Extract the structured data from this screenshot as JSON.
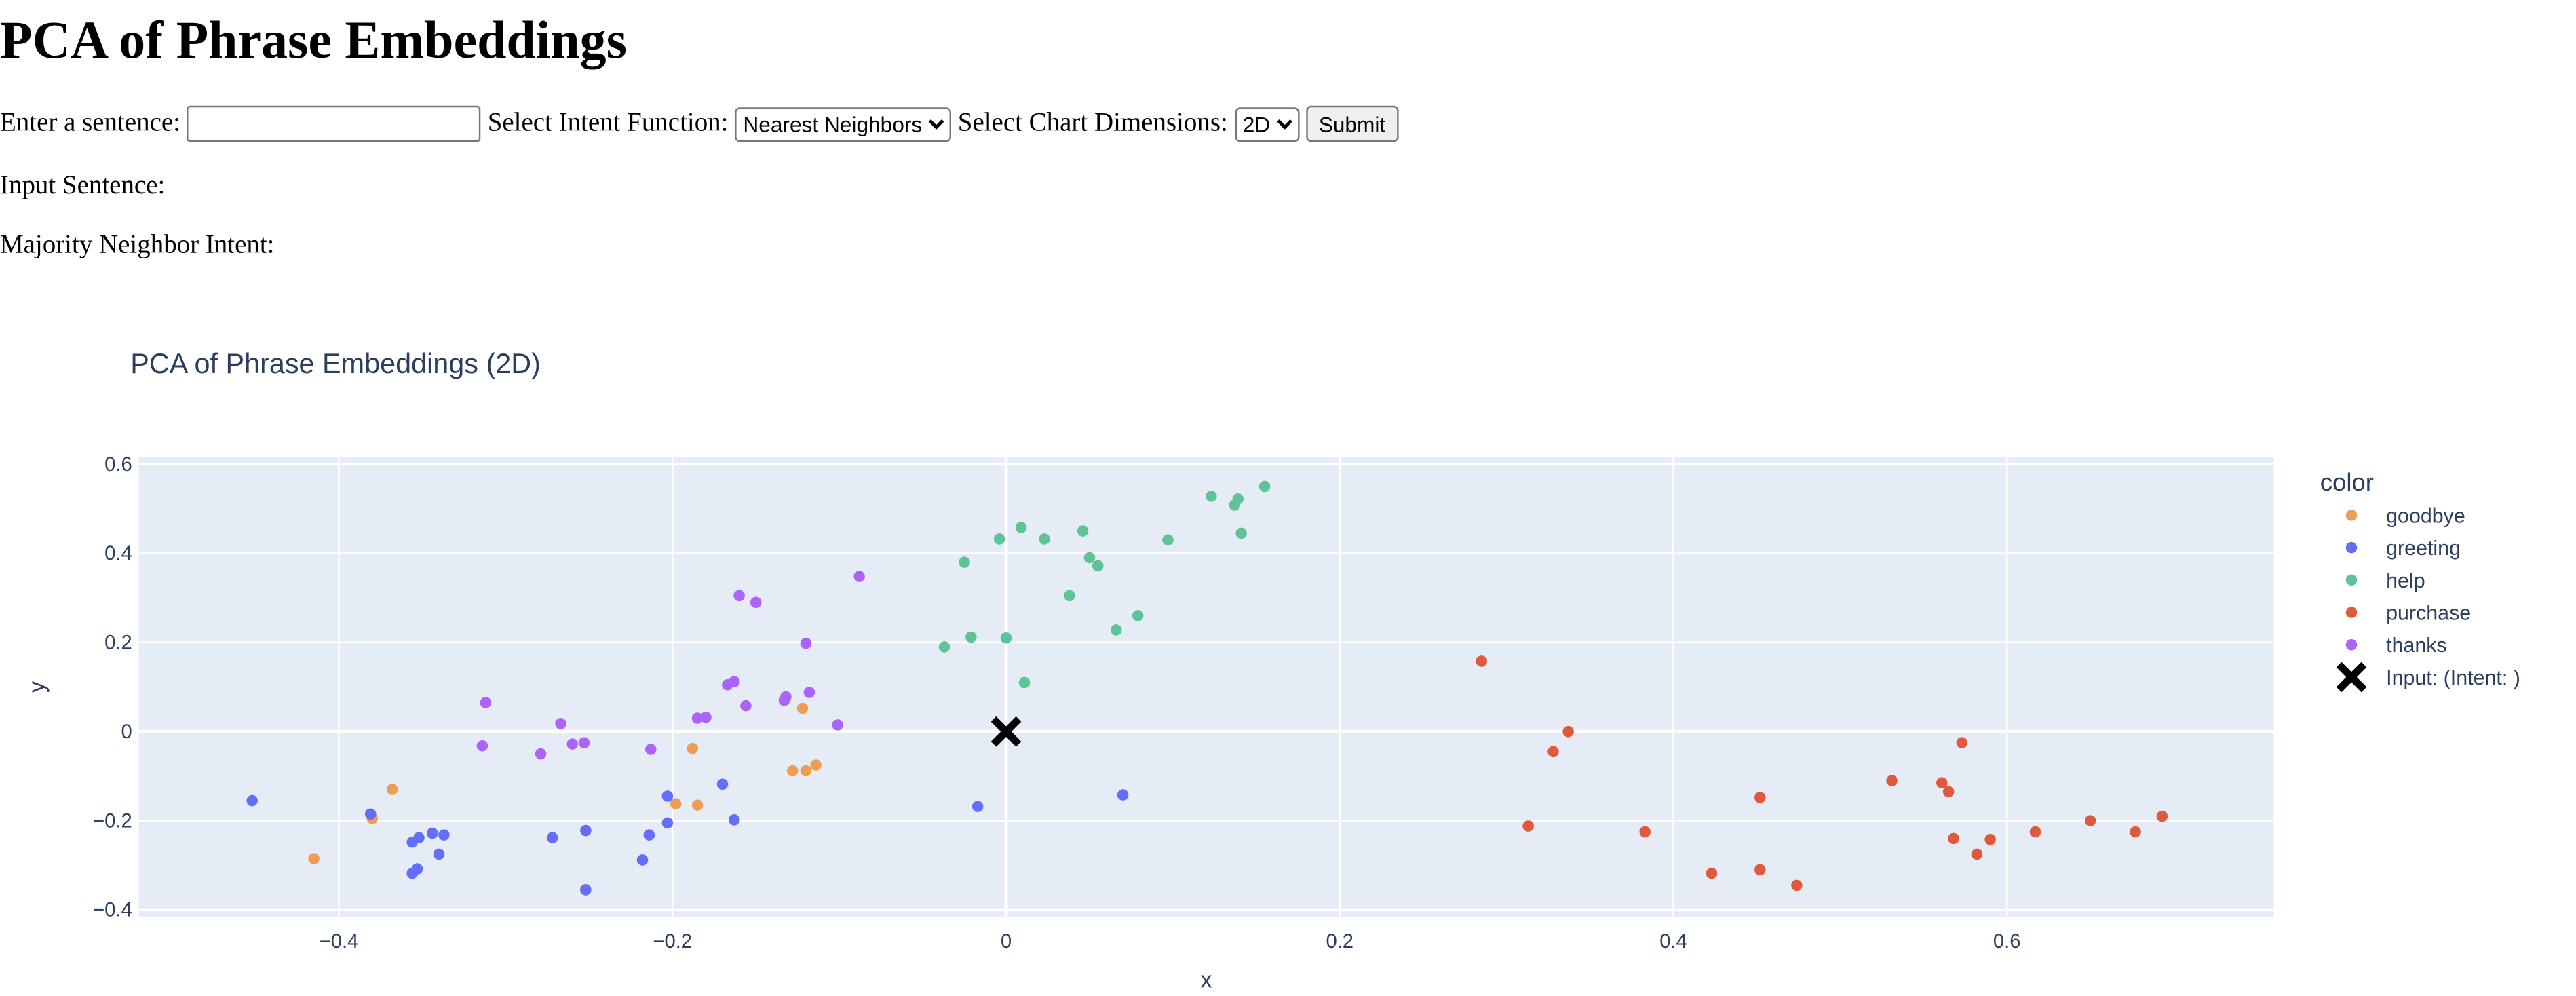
{
  "page": {
    "title": "PCA of Phrase Embeddings",
    "sentence_label": "Enter a sentence:",
    "sentence_value": "",
    "intent_label": "Select Intent Function:",
    "intent_selected": "Nearest Neighbors",
    "dims_label": "Select Chart Dimensions:",
    "dims_selected": "2D",
    "submit_label": "Submit",
    "input_sentence_label": "Input Sentence:",
    "majority_label": "Majority Neighbor Intent:"
  },
  "chart_data": {
    "type": "scatter",
    "title": "PCA of Phrase Embeddings (2D)",
    "xlabel": "x",
    "ylabel": "y",
    "xlim": [
      -0.52,
      0.76
    ],
    "ylim": [
      -0.415,
      0.615
    ],
    "xticks": [
      -0.4,
      -0.2,
      0,
      0.2,
      0.4,
      0.6
    ],
    "xtick_labels": [
      "−0.4",
      "−0.2",
      "0",
      "0.2",
      "0.4",
      "0.6"
    ],
    "yticks": [
      -0.4,
      -0.2,
      0,
      0.2,
      0.4,
      0.6
    ],
    "ytick_labels": [
      "−0.4",
      "−0.2",
      "0",
      "0.2",
      "0.4",
      "0.6"
    ],
    "grid": true,
    "background_color": "#e5ecf6",
    "legend_title": "color",
    "legend_position": "right",
    "series": [
      {
        "name": "goodbye",
        "color": "#ef9d54",
        "points": [
          [
            -0.415,
            -0.285
          ],
          [
            -0.38,
            -0.195
          ],
          [
            -0.368,
            -0.13
          ],
          [
            -0.198,
            -0.162
          ],
          [
            -0.188,
            -0.038
          ],
          [
            -0.185,
            -0.165
          ],
          [
            -0.122,
            0.052
          ],
          [
            -0.128,
            -0.088
          ],
          [
            -0.12,
            -0.088
          ],
          [
            -0.114,
            -0.075
          ]
        ]
      },
      {
        "name": "greeting",
        "color": "#636efa",
        "points": [
          [
            -0.452,
            -0.155
          ],
          [
            -0.381,
            -0.185
          ],
          [
            -0.356,
            -0.248
          ],
          [
            -0.352,
            -0.238
          ],
          [
            -0.356,
            -0.318
          ],
          [
            -0.353,
            -0.308
          ],
          [
            -0.344,
            -0.228
          ],
          [
            -0.34,
            -0.275
          ],
          [
            -0.337,
            -0.232
          ],
          [
            -0.272,
            -0.238
          ],
          [
            -0.252,
            -0.222
          ],
          [
            -0.252,
            -0.355
          ],
          [
            -0.218,
            -0.288
          ],
          [
            -0.214,
            -0.232
          ],
          [
            -0.203,
            -0.145
          ],
          [
            -0.203,
            -0.205
          ],
          [
            -0.17,
            -0.118
          ],
          [
            -0.163,
            -0.198
          ],
          [
            -0.017,
            -0.168
          ],
          [
            0.07,
            -0.142
          ]
        ]
      },
      {
        "name": "help",
        "color": "#5ec497",
        "points": [
          [
            -0.037,
            0.19
          ],
          [
            -0.025,
            0.38
          ],
          [
            -0.021,
            0.212
          ],
          [
            -0.004,
            0.432
          ],
          [
            0,
            0.21
          ],
          [
            0.009,
            0.458
          ],
          [
            0.011,
            0.11
          ],
          [
            0.023,
            0.432
          ],
          [
            0.038,
            0.305
          ],
          [
            0.046,
            0.45
          ],
          [
            0.05,
            0.39
          ],
          [
            0.055,
            0.372
          ],
          [
            0.066,
            0.228
          ],
          [
            0.079,
            0.26
          ],
          [
            0.097,
            0.43
          ],
          [
            0.123,
            0.528
          ],
          [
            0.137,
            0.508
          ],
          [
            0.139,
            0.522
          ],
          [
            0.141,
            0.445
          ],
          [
            0.155,
            0.55
          ]
        ]
      },
      {
        "name": "purchase",
        "color": "#df5a3d",
        "points": [
          [
            0.285,
            0.158
          ],
          [
            0.313,
            -0.212
          ],
          [
            0.328,
            -0.045
          ],
          [
            0.337,
            0.0
          ],
          [
            0.383,
            -0.225
          ],
          [
            0.423,
            -0.318
          ],
          [
            0.452,
            -0.148
          ],
          [
            0.452,
            -0.31
          ],
          [
            0.474,
            -0.345
          ],
          [
            0.531,
            -0.11
          ],
          [
            0.561,
            -0.115
          ],
          [
            0.565,
            -0.135
          ],
          [
            0.568,
            -0.24
          ],
          [
            0.573,
            -0.025
          ],
          [
            0.582,
            -0.275
          ],
          [
            0.59,
            -0.242
          ],
          [
            0.617,
            -0.225
          ],
          [
            0.65,
            -0.2
          ],
          [
            0.677,
            -0.225
          ],
          [
            0.693,
            -0.19
          ]
        ]
      },
      {
        "name": "thanks",
        "color": "#ab63fa",
        "points": [
          [
            -0.314,
            -0.032
          ],
          [
            -0.312,
            0.065
          ],
          [
            -0.279,
            -0.05
          ],
          [
            -0.267,
            0.018
          ],
          [
            -0.26,
            -0.028
          ],
          [
            -0.253,
            -0.025
          ],
          [
            -0.213,
            -0.04
          ],
          [
            -0.185,
            0.03
          ],
          [
            -0.18,
            0.032
          ],
          [
            -0.167,
            0.105
          ],
          [
            -0.163,
            0.112
          ],
          [
            -0.16,
            0.305
          ],
          [
            -0.156,
            0.058
          ],
          [
            -0.15,
            0.29
          ],
          [
            -0.133,
            0.07
          ],
          [
            -0.132,
            0.078
          ],
          [
            -0.12,
            0.198
          ],
          [
            -0.118,
            0.088
          ],
          [
            -0.101,
            0.015
          ],
          [
            -0.088,
            0.348
          ]
        ]
      }
    ],
    "input_point": {
      "name": "Input:  (Intent: )",
      "symbol": "x",
      "color": "#000000",
      "x": 0,
      "y": 0
    }
  }
}
